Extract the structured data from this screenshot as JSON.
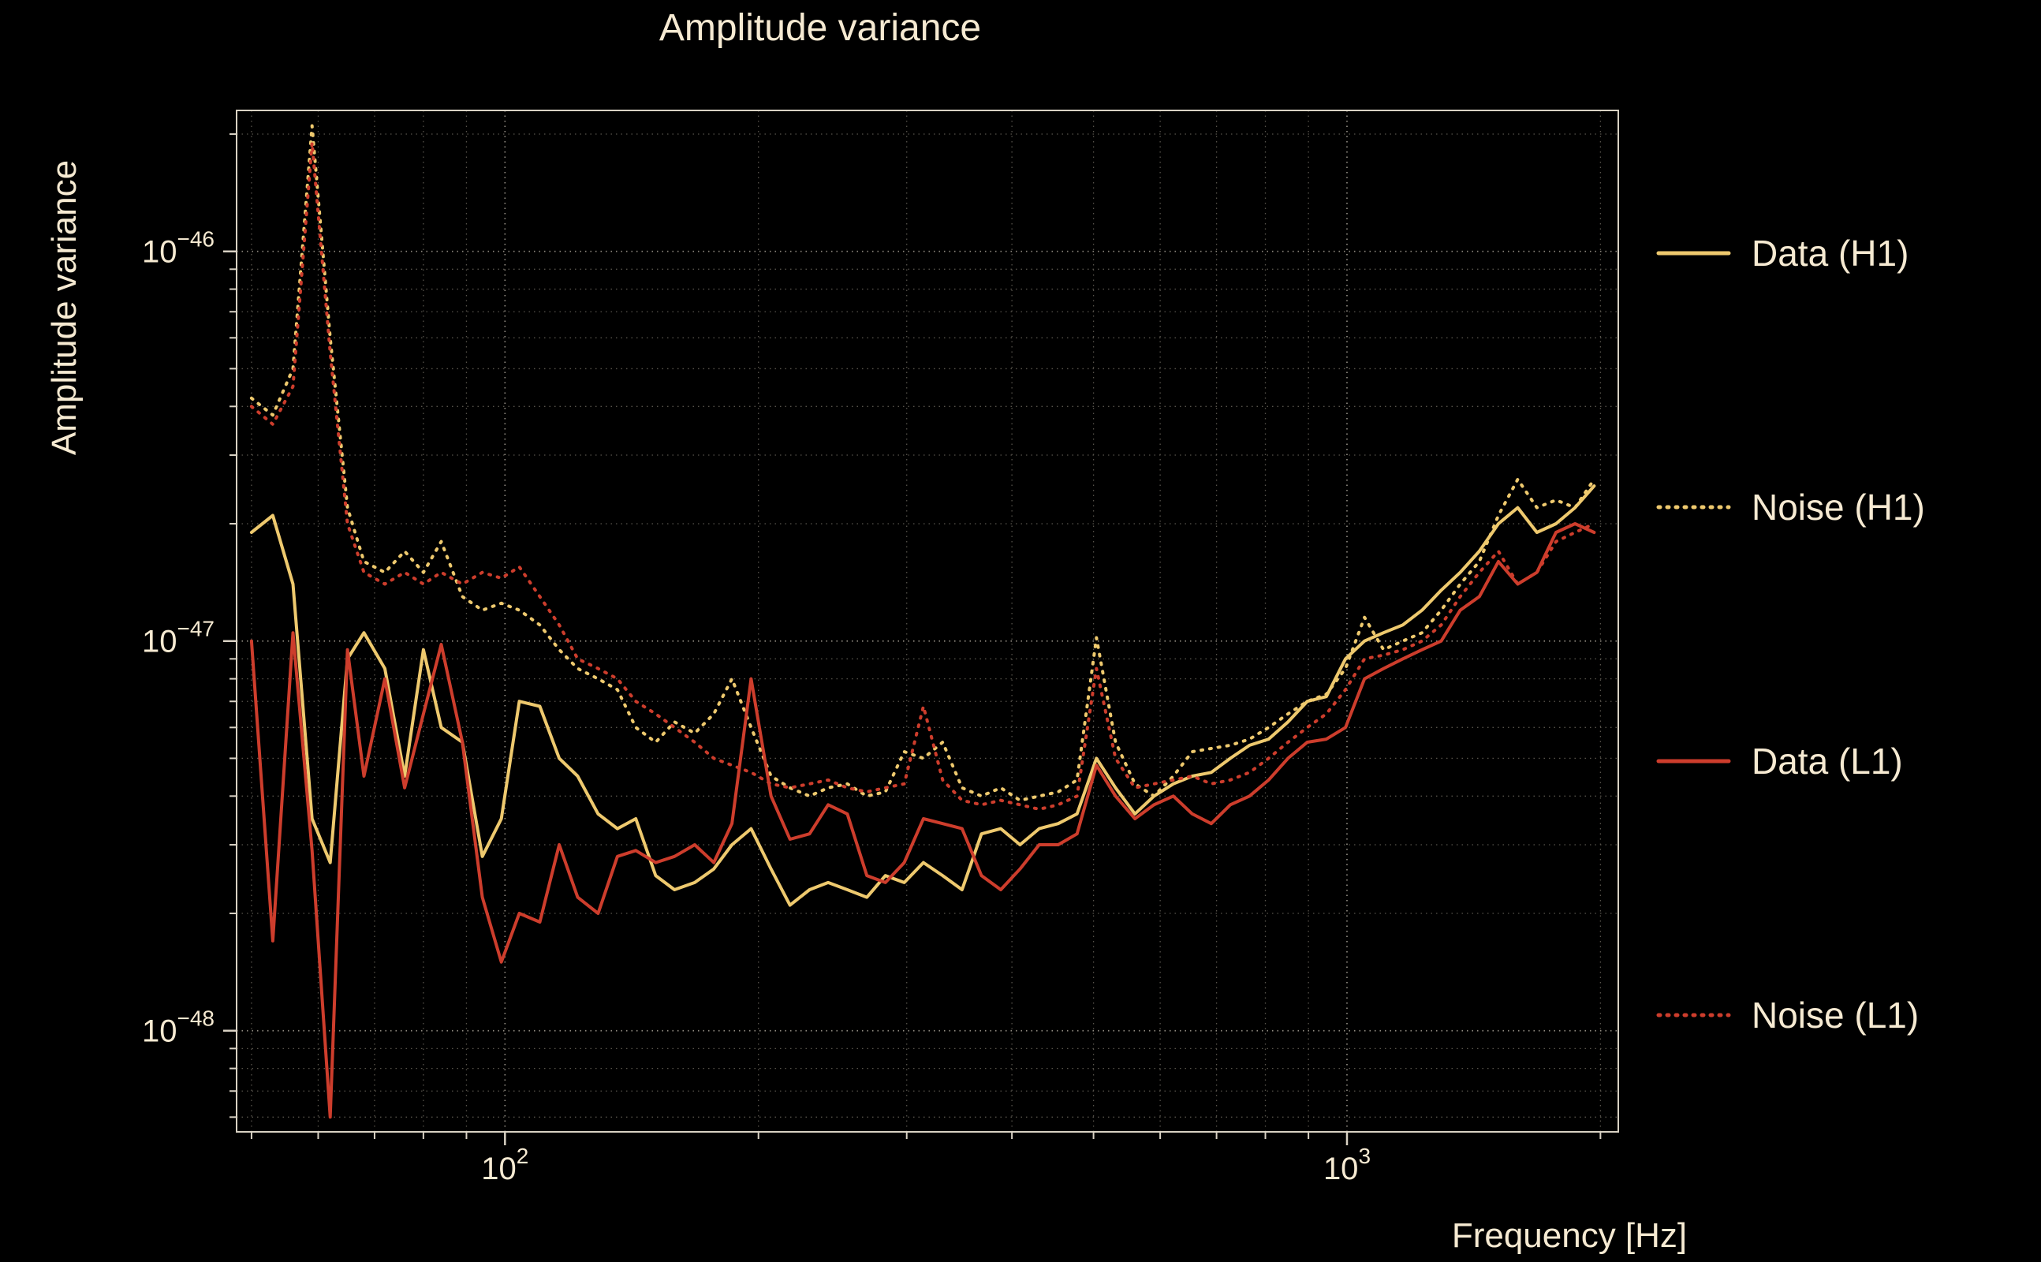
{
  "chart_data": {
    "type": "line",
    "title": "Amplitude variance",
    "xlabel": "Frequency [Hz]",
    "ylabel": "Amplitude variance",
    "xscale": "log",
    "yscale": "log",
    "grid": true,
    "legend_position": "right-outside",
    "xlim": [
      48,
      2100
    ],
    "ylim": [
      5.5e-49,
      2.3e-46
    ],
    "x_ticks": [
      {
        "value": 100,
        "base": "10",
        "exp": "2"
      },
      {
        "value": 1000,
        "base": "10",
        "exp": "3"
      }
    ],
    "y_ticks": [
      {
        "value": 1e-48,
        "base": "10",
        "exp": "−48"
      },
      {
        "value": 1e-47,
        "base": "10",
        "exp": "−47"
      },
      {
        "value": 1e-46,
        "base": "10",
        "exp": "−46"
      }
    ],
    "colors": {
      "h1": "#eec96e",
      "l1": "#cd3d2c",
      "text": "#f6ead2",
      "frame": "#d8d1c3",
      "grid_major": "#8f8a80",
      "grid_minor": "#57534b",
      "background": "#000000"
    },
    "x": [
      50,
      53,
      56,
      59,
      62,
      65,
      68,
      72,
      76,
      80,
      84,
      89,
      94,
      99,
      104,
      110,
      116,
      122,
      129,
      136,
      143,
      151,
      159,
      168,
      177,
      186,
      196,
      207,
      218,
      230,
      242,
      255,
      269,
      283,
      298,
      314,
      331,
      349,
      368,
      388,
      409,
      431,
      454,
      478,
      504,
      531,
      560,
      590,
      622,
      655,
      690,
      727,
      766,
      807,
      851,
      897,
      945,
      996,
      1049,
      1105,
      1165,
      1228,
      1294,
      1363,
      1436,
      1513,
      1595,
      1681,
      1771,
      1866,
      1966
    ],
    "series": [
      {
        "id": "data-h1",
        "name": "Data (H1)",
        "color": "#eec96e",
        "style": "solid",
        "dash": "",
        "values": [
          1.9e-47,
          2.1e-47,
          1.4e-47,
          3.5e-48,
          2.7e-48,
          9e-48,
          1.05e-47,
          8.5e-48,
          4.5e-48,
          9.5e-48,
          6e-48,
          5.5e-48,
          2.8e-48,
          3.5e-48,
          7e-48,
          6.8e-48,
          5e-48,
          4.5e-48,
          3.6e-48,
          3.3e-48,
          3.5e-48,
          2.5e-48,
          2.3e-48,
          2.4e-48,
          2.6e-48,
          3e-48,
          3.3e-48,
          2.6e-48,
          2.1e-48,
          2.3e-48,
          2.4e-48,
          2.3e-48,
          2.2e-48,
          2.5e-48,
          2.4e-48,
          2.7e-48,
          2.5e-48,
          2.3e-48,
          3.2e-48,
          3.3e-48,
          3e-48,
          3.3e-48,
          3.4e-48,
          3.6e-48,
          5e-48,
          4.2e-48,
          3.6e-48,
          4e-48,
          4.3e-48,
          4.5e-48,
          4.6e-48,
          5e-48,
          5.4e-48,
          5.6e-48,
          6.2e-48,
          7e-48,
          7.2e-48,
          9e-48,
          1e-47,
          1.05e-47,
          1.1e-47,
          1.2e-47,
          1.35e-47,
          1.5e-47,
          1.7e-47,
          2e-47,
          2.2e-47,
          1.9e-47,
          2e-47,
          2.2e-47,
          2.5e-47
        ]
      },
      {
        "id": "noise-h1",
        "name": "Noise (H1)",
        "color": "#eec96e",
        "style": "dotted",
        "dash": "2 9",
        "values": [
          4.2e-47,
          3.8e-47,
          5e-47,
          2.1e-46,
          6e-47,
          2.2e-47,
          1.6e-47,
          1.5e-47,
          1.7e-47,
          1.5e-47,
          1.8e-47,
          1.3e-47,
          1.2e-47,
          1.25e-47,
          1.2e-47,
          1.1e-47,
          9.5e-48,
          8.5e-48,
          8e-48,
          7.5e-48,
          6e-48,
          5.5e-48,
          6.2e-48,
          5.8e-48,
          6.5e-48,
          8e-48,
          6e-48,
          4.5e-48,
          4.2e-48,
          4e-48,
          4.2e-48,
          4.3e-48,
          4e-48,
          4.1e-48,
          5.2e-48,
          5e-48,
          5.5e-48,
          4.2e-48,
          4e-48,
          4.2e-48,
          3.9e-48,
          4e-48,
          4.1e-48,
          4.4e-48,
          1.02e-47,
          5.5e-48,
          4.3e-48,
          4e-48,
          4.5e-48,
          5.2e-48,
          5.3e-48,
          5.4e-48,
          5.6e-48,
          6e-48,
          6.5e-48,
          7e-48,
          7.3e-48,
          8.5e-48,
          1.15e-47,
          9.5e-48,
          1e-47,
          1.05e-47,
          1.2e-47,
          1.4e-47,
          1.6e-47,
          2.1e-47,
          2.6e-47,
          2.2e-47,
          2.3e-47,
          2.2e-47,
          2.6e-47
        ]
      },
      {
        "id": "data-l1",
        "name": "Data (L1)",
        "color": "#cd3d2c",
        "style": "solid",
        "dash": "",
        "values": [
          1e-47,
          1.7e-48,
          1.05e-47,
          2.9e-48,
          6e-49,
          9.5e-48,
          4.5e-48,
          8e-48,
          4.2e-48,
          6.5e-48,
          9.8e-48,
          5.5e-48,
          2.2e-48,
          1.5e-48,
          2e-48,
          1.9e-48,
          3e-48,
          2.2e-48,
          2e-48,
          2.8e-48,
          2.9e-48,
          2.7e-48,
          2.8e-48,
          3e-48,
          2.7e-48,
          3.4e-48,
          8e-48,
          4e-48,
          3.1e-48,
          3.2e-48,
          3.8e-48,
          3.6e-48,
          2.5e-48,
          2.4e-48,
          2.7e-48,
          3.5e-48,
          3.4e-48,
          3.3e-48,
          2.5e-48,
          2.3e-48,
          2.6e-48,
          3e-48,
          3e-48,
          3.2e-48,
          4.8e-48,
          4e-48,
          3.5e-48,
          3.8e-48,
          4e-48,
          3.6e-48,
          3.4e-48,
          3.8e-48,
          4e-48,
          4.4e-48,
          5e-48,
          5.5e-48,
          5.6e-48,
          6e-48,
          8e-48,
          8.5e-48,
          9e-48,
          9.5e-48,
          1e-47,
          1.2e-47,
          1.3e-47,
          1.6e-47,
          1.4e-47,
          1.5e-47,
          1.9e-47,
          2e-47,
          1.9e-47
        ]
      },
      {
        "id": "noise-l1",
        "name": "Noise (L1)",
        "color": "#cd3d2c",
        "style": "dotted",
        "dash": "2 9",
        "values": [
          4e-47,
          3.6e-47,
          4.5e-47,
          1.9e-46,
          5.5e-47,
          2e-47,
          1.5e-47,
          1.4e-47,
          1.5e-47,
          1.4e-47,
          1.5e-47,
          1.4e-47,
          1.5e-47,
          1.45e-47,
          1.55e-47,
          1.3e-47,
          1.1e-47,
          9e-48,
          8.5e-48,
          8e-48,
          7e-48,
          6.5e-48,
          6e-48,
          5.5e-48,
          5e-48,
          4.8e-48,
          4.6e-48,
          4.3e-48,
          4.2e-48,
          4.3e-48,
          4.4e-48,
          4.2e-48,
          4.1e-48,
          4.2e-48,
          4.3e-48,
          6.8e-48,
          4.4e-48,
          3.9e-48,
          3.8e-48,
          3.9e-48,
          3.8e-48,
          3.7e-48,
          3.8e-48,
          4e-48,
          8.5e-48,
          5e-48,
          4.2e-48,
          4.3e-48,
          4.4e-48,
          4.5e-48,
          4.3e-48,
          4.4e-48,
          4.6e-48,
          5e-48,
          5.5e-48,
          6e-48,
          6.5e-48,
          7.5e-48,
          9e-48,
          9.2e-48,
          9.5e-48,
          1e-47,
          1.1e-47,
          1.3e-47,
          1.5e-47,
          1.7e-47,
          1.4e-47,
          1.5e-47,
          1.8e-47,
          1.9e-47,
          2e-47
        ]
      }
    ]
  }
}
